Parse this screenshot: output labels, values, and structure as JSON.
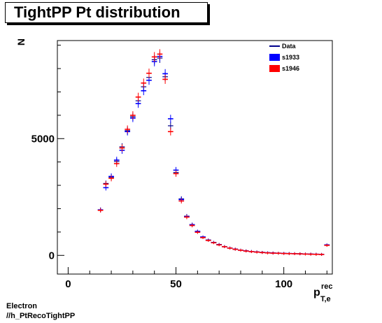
{
  "title": "TightPP Pt distribution",
  "footer": {
    "line1": "Electron",
    "line2": "//h_PtRecoTightPP"
  },
  "chart_data": {
    "type": "scatter",
    "title": "TightPP Pt distribution",
    "xlabel": "p",
    "xlabel_sup": "rec",
    "xlabel_sub": "T,e",
    "ylabel": "N",
    "xlim": [
      -5,
      122.5
    ],
    "ylim": [
      -800,
      9200
    ],
    "xticks": [
      0,
      50,
      100
    ],
    "yticks": [
      0,
      5000
    ],
    "legend_position": "top-right",
    "colors": {
      "Data": "#00008b",
      "s1933": "#0000ff",
      "s1946": "#ff0000"
    },
    "series": [
      {
        "name": "Data",
        "x": [
          15,
          17.5,
          20,
          22.5,
          25,
          27.5,
          30,
          32.5,
          35,
          37.5,
          40,
          42.5,
          45,
          47.5,
          50,
          52.5,
          55,
          57.5,
          60,
          62.5,
          65,
          67.5,
          70,
          72.5,
          75,
          77.5,
          80,
          82.5,
          85,
          87.5,
          90,
          92.5,
          95,
          97.5,
          100,
          102.5,
          105,
          107.5,
          110,
          112.5,
          115,
          117.5,
          120
        ],
        "y": [
          1950,
          3080,
          3350,
          4020,
          4650,
          5340,
          5940,
          6620,
          7220,
          7620,
          8380,
          8450,
          7650,
          5550,
          3550,
          2420,
          1680,
          1320,
          1020,
          780,
          660,
          560,
          470,
          380,
          320,
          270,
          230,
          190,
          170,
          150,
          130,
          110,
          100,
          90,
          85,
          80,
          75,
          70,
          60,
          55,
          50,
          40,
          440
        ]
      },
      {
        "name": "s1933",
        "x": [
          15,
          17.5,
          20,
          22.5,
          25,
          27.5,
          30,
          32.5,
          35,
          37.5,
          40,
          42.5,
          45,
          47.5,
          50,
          52.5,
          55,
          57.5,
          60,
          62.5,
          65,
          67.5,
          70,
          72.5,
          75,
          77.5,
          80,
          82.5,
          85,
          87.5,
          90,
          92.5,
          95,
          97.5,
          100,
          102.5,
          105,
          107.5,
          110,
          112.5,
          115,
          117.5,
          120
        ],
        "y": [
          1950,
          2900,
          3380,
          4080,
          4500,
          5300,
          5880,
          6500,
          7050,
          7500,
          8300,
          8520,
          7780,
          5850,
          3650,
          2390,
          1660,
          1310,
          1030,
          790,
          650,
          550,
          460,
          375,
          315,
          265,
          225,
          195,
          165,
          145,
          125,
          115,
          105,
          95,
          85,
          80,
          75,
          65,
          60,
          55,
          50,
          45,
          450
        ]
      },
      {
        "name": "s1946",
        "x": [
          15,
          17.5,
          20,
          22.5,
          25,
          27.5,
          30,
          32.5,
          35,
          37.5,
          40,
          42.5,
          45,
          47.5,
          50,
          52.5,
          55,
          57.5,
          60,
          62.5,
          65,
          67.5,
          70,
          72.5,
          75,
          77.5,
          80,
          82.5,
          85,
          87.5,
          90,
          92.5,
          95,
          97.5,
          100,
          102.5,
          105,
          107.5,
          110,
          112.5,
          115,
          117.5,
          120
        ],
        "y": [
          1930,
          3050,
          3300,
          3930,
          4600,
          5400,
          6000,
          6780,
          7380,
          7800,
          8500,
          8620,
          7540,
          5300,
          3500,
          2330,
          1640,
          1280,
          990,
          760,
          640,
          540,
          450,
          370,
          310,
          260,
          220,
          185,
          160,
          140,
          120,
          105,
          95,
          90,
          80,
          75,
          70,
          65,
          55,
          50,
          45,
          40,
          430
        ]
      }
    ]
  }
}
